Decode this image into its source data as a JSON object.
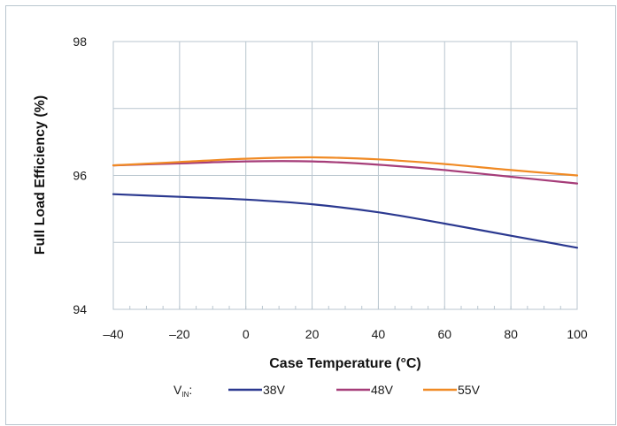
{
  "chart_data": {
    "type": "line",
    "title": "",
    "xlabel": "Case Temperature (°C)",
    "ylabel": "Full Load Efficiency (%)",
    "xlim": [
      -40,
      100
    ],
    "ylim": [
      94,
      98
    ],
    "x_ticks": [
      -40,
      -20,
      0,
      20,
      40,
      60,
      80,
      100
    ],
    "x_tick_labels": [
      "–40",
      "–20",
      "0",
      "20",
      "40",
      "60",
      "80",
      "100"
    ],
    "y_ticks": [
      94,
      96,
      98
    ],
    "y_tick_labels": [
      "94",
      "96",
      "98"
    ],
    "grid": true,
    "legend": {
      "prefix": "V",
      "prefix_sub": "IN",
      "prefix_suffix": ":",
      "placement": "bottom"
    },
    "colors": {
      "38V": "#2b3990",
      "48V": "#a63d79",
      "55V": "#f08a24",
      "grid": "#b9c6cf"
    },
    "series": [
      {
        "name": "38V",
        "color": "#2b3990",
        "x": [
          -40,
          -20,
          0,
          20,
          40,
          60,
          80,
          100
        ],
        "y": [
          95.72,
          95.68,
          95.64,
          95.57,
          95.45,
          95.28,
          95.1,
          94.92
        ]
      },
      {
        "name": "48V",
        "color": "#a63d79",
        "x": [
          -40,
          -20,
          0,
          20,
          40,
          60,
          80,
          100
        ],
        "y": [
          96.15,
          96.18,
          96.21,
          96.21,
          96.16,
          96.08,
          95.98,
          95.88
        ]
      },
      {
        "name": "55V",
        "color": "#f08a24",
        "x": [
          -40,
          -20,
          0,
          20,
          40,
          60,
          80,
          100
        ],
        "y": [
          96.15,
          96.2,
          96.25,
          96.27,
          96.24,
          96.17,
          96.08,
          96.0
        ]
      }
    ]
  }
}
